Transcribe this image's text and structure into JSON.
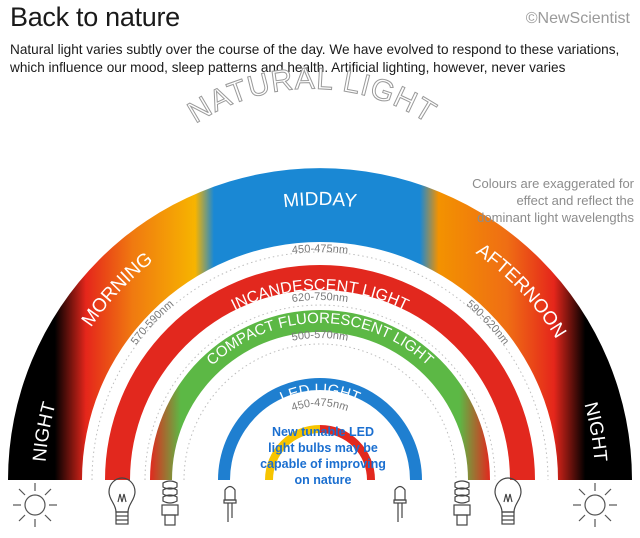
{
  "header": {
    "title": "Back to nature",
    "brand": "©NewScientist",
    "intro": "Natural light varies subtly over the course of the day.  We have evolved to respond to these variations, which influence our mood, sleep patterns and health. Artificial lighting, however, never varies"
  },
  "diagram": {
    "outer_title": "NATURAL LIGHT",
    "segments": {
      "night_left": "NIGHT",
      "morning": "MORNING",
      "midday": "MIDDAY",
      "afternoon": "AFTERNOON",
      "night_right": "NIGHT"
    },
    "wavelengths": {
      "morning": "570-590nm",
      "midday": "450-475nm",
      "afternoon": "590-620nm"
    },
    "rings": [
      {
        "label": "INCANDESCENT LIGHT",
        "wavelength": "620-750nm",
        "color": "#e2281e"
      },
      {
        "label": "COMPACT FLUORESCENT LIGHT",
        "wavelength": "500-570nm",
        "color": "#5cb845"
      },
      {
        "label": "LED LIGHT",
        "wavelength": "450-475nm",
        "color": "#1f7fd0"
      }
    ],
    "note": "Colours are exaggerated for effect and reflect the dominant light wavelengths",
    "center_note": "New tunable LED light bulbs may be capable of improving on nature",
    "colors": {
      "night": "#000000",
      "morning": "#f6a000",
      "midday": "#1a88d4",
      "afternoon": "#f39200",
      "red": "#e2281e"
    },
    "icons": [
      "sun-icon",
      "incandescent-bulb-icon",
      "cfl-bulb-icon",
      "led-bulb-icon",
      "led-bulb-icon",
      "cfl-bulb-icon",
      "incandescent-bulb-icon",
      "sun-icon"
    ]
  }
}
